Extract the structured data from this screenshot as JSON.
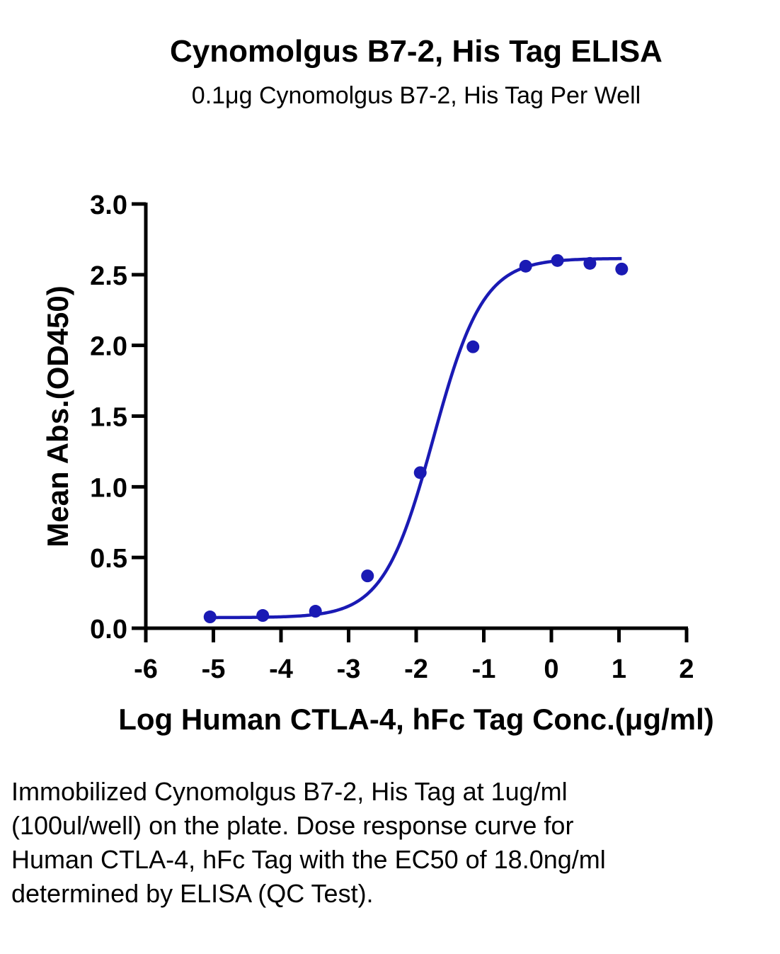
{
  "chart_data": {
    "type": "scatter",
    "title": "Cynomolgus B7-2, His Tag ELISA",
    "subtitle": "0.1μg Cynomolgus B7-2, His Tag Per Well",
    "xlabel": "Log Human CTLA-4, hFc Tag Conc.(μg/ml)",
    "ylabel": "Mean Abs.(OD450)",
    "xlim": [
      -6,
      2
    ],
    "ylim": [
      0,
      3.0
    ],
    "x_ticks": [
      "-6",
      "-5",
      "-4",
      "-3",
      "-2",
      "-1",
      "0",
      "1",
      "2"
    ],
    "y_ticks": [
      "0.0",
      "0.5",
      "1.0",
      "1.5",
      "2.0",
      "2.5",
      "3.0"
    ],
    "grid": false,
    "series": [
      {
        "points": [
          {
            "x": -5.05,
            "y": 0.08
          },
          {
            "x": -4.27,
            "y": 0.09
          },
          {
            "x": -3.49,
            "y": 0.12
          },
          {
            "x": -2.72,
            "y": 0.37
          },
          {
            "x": -1.94,
            "y": 1.1
          },
          {
            "x": -1.16,
            "y": 1.99
          },
          {
            "x": -0.38,
            "y": 2.56
          },
          {
            "x": 0.09,
            "y": 2.6
          },
          {
            "x": 0.57,
            "y": 2.58
          },
          {
            "x": 1.04,
            "y": 2.54
          }
        ],
        "fit": {
          "model": "4PL",
          "bottom": 0.075,
          "top": 2.615,
          "log_ec50": -1.745,
          "hill": 1.18,
          "x_range": [
            -5.05,
            1.04
          ]
        }
      }
    ],
    "colors": {
      "series": "#1a1ab4",
      "axis": "#000000"
    }
  },
  "caption": "Immobilized Cynomolgus B7-2, His Tag at 1ug/ml (100ul/well) on the plate. Dose response curve for Human CTLA-4, hFc Tag with the EC50 of 18.0ng/ml determined by ELISA (QC Test)."
}
